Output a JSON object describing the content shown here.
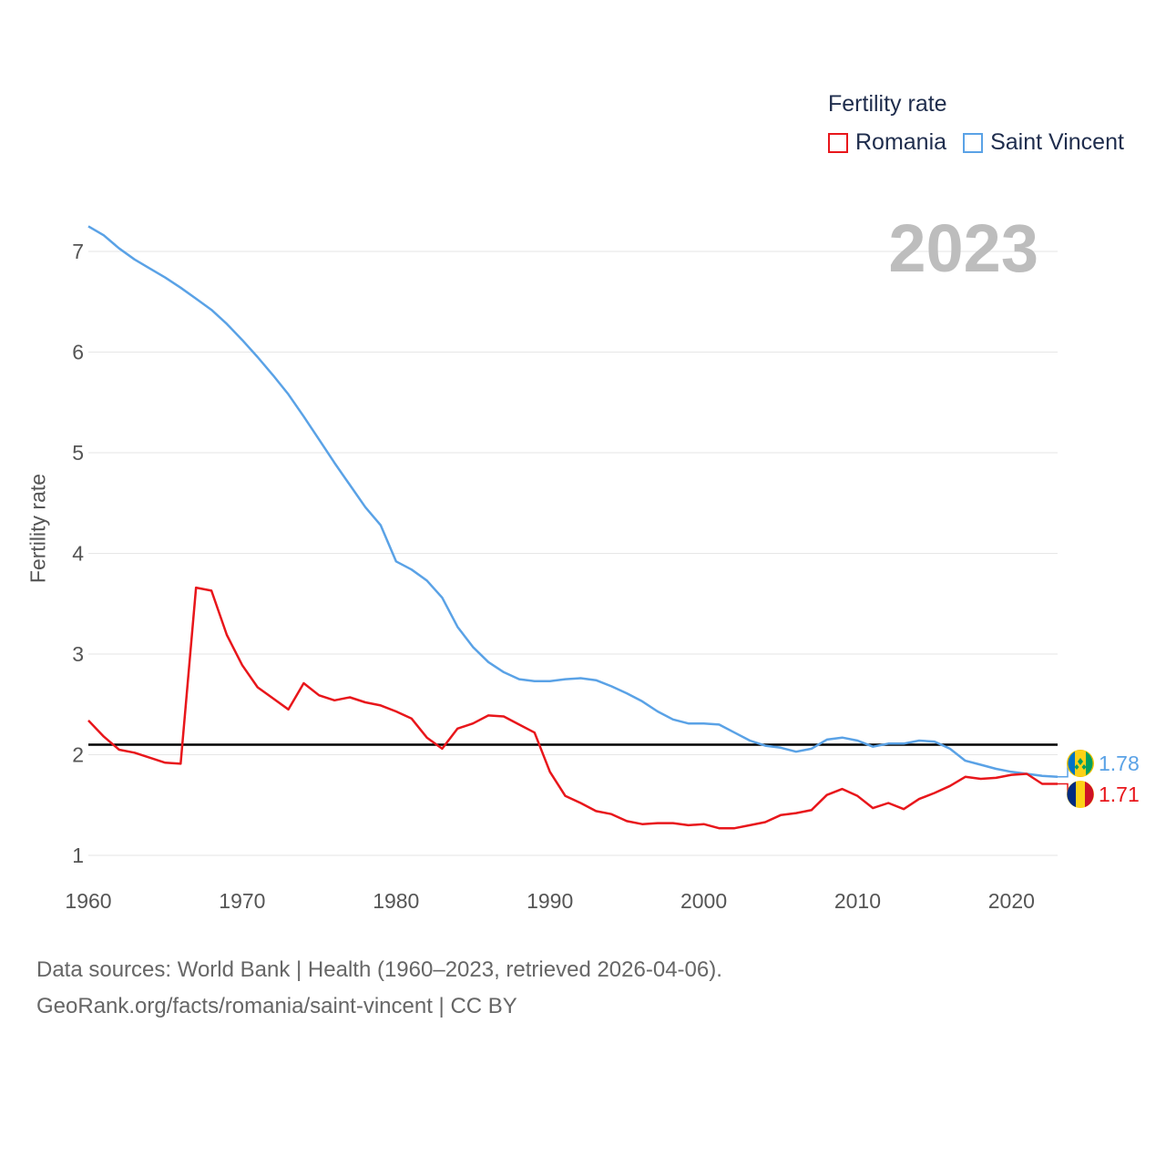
{
  "legend": {
    "title": "Fertility rate",
    "items": [
      {
        "label": "Romania",
        "color": "#e8161b"
      },
      {
        "label": "Saint Vincent",
        "color": "#5aa2e6"
      }
    ]
  },
  "year_label": "2023",
  "source": {
    "line1": "Data sources: World Bank | Health (1960–2023, retrieved 2026-04-06).",
    "line2": "GeoRank.org/facts/romania/saint-vincent | CC BY"
  },
  "chart_data": {
    "type": "line",
    "title": "Fertility rate",
    "xlabel": "",
    "ylabel": "Fertility rate",
    "xlim": [
      1960,
      2023
    ],
    "ylim": [
      1,
      7
    ],
    "x_ticks": [
      1960,
      1970,
      1980,
      1990,
      2000,
      2010,
      2020
    ],
    "y_ticks": [
      1,
      2,
      3,
      4,
      5,
      6,
      7
    ],
    "reference_line": {
      "y": 2.1,
      "color": "#000000"
    },
    "x": [
      1960,
      1961,
      1962,
      1963,
      1964,
      1965,
      1966,
      1967,
      1968,
      1969,
      1970,
      1971,
      1972,
      1973,
      1974,
      1975,
      1976,
      1977,
      1978,
      1979,
      1980,
      1981,
      1982,
      1983,
      1984,
      1985,
      1986,
      1987,
      1988,
      1989,
      1990,
      1991,
      1992,
      1993,
      1994,
      1995,
      1996,
      1997,
      1998,
      1999,
      2000,
      2001,
      2002,
      2003,
      2004,
      2005,
      2006,
      2007,
      2008,
      2009,
      2010,
      2011,
      2012,
      2013,
      2014,
      2015,
      2016,
      2017,
      2018,
      2019,
      2020,
      2021,
      2022,
      2023
    ],
    "series": [
      {
        "name": "Romania",
        "color": "#e8161b",
        "end_label": "1.71",
        "values": [
          2.34,
          2.18,
          2.05,
          2.02,
          1.97,
          1.92,
          1.91,
          3.66,
          3.63,
          3.19,
          2.89,
          2.67,
          2.56,
          2.45,
          2.71,
          2.59,
          2.54,
          2.57,
          2.52,
          2.49,
          2.43,
          2.36,
          2.17,
          2.06,
          2.26,
          2.31,
          2.39,
          2.38,
          2.3,
          2.22,
          1.83,
          1.59,
          1.52,
          1.44,
          1.41,
          1.34,
          1.31,
          1.32,
          1.32,
          1.3,
          1.31,
          1.27,
          1.27,
          1.3,
          1.33,
          1.4,
          1.42,
          1.45,
          1.6,
          1.66,
          1.59,
          1.47,
          1.52,
          1.46,
          1.56,
          1.62,
          1.69,
          1.78,
          1.76,
          1.77,
          1.8,
          1.81,
          1.71,
          1.71
        ]
      },
      {
        "name": "Saint Vincent",
        "color": "#5aa2e6",
        "end_label": "1.78",
        "values": [
          7.25,
          7.16,
          7.03,
          6.92,
          6.83,
          6.74,
          6.64,
          6.53,
          6.42,
          6.28,
          6.12,
          5.95,
          5.77,
          5.58,
          5.36,
          5.13,
          4.9,
          4.68,
          4.46,
          4.28,
          3.92,
          3.84,
          3.73,
          3.56,
          3.27,
          3.07,
          2.92,
          2.82,
          2.75,
          2.73,
          2.73,
          2.75,
          2.76,
          2.74,
          2.68,
          2.61,
          2.53,
          2.43,
          2.35,
          2.31,
          2.31,
          2.3,
          2.22,
          2.14,
          2.09,
          2.07,
          2.03,
          2.06,
          2.15,
          2.17,
          2.14,
          2.08,
          2.11,
          2.11,
          2.14,
          2.13,
          2.06,
          1.94,
          1.9,
          1.86,
          1.83,
          1.81,
          1.79,
          1.78
        ]
      }
    ]
  }
}
